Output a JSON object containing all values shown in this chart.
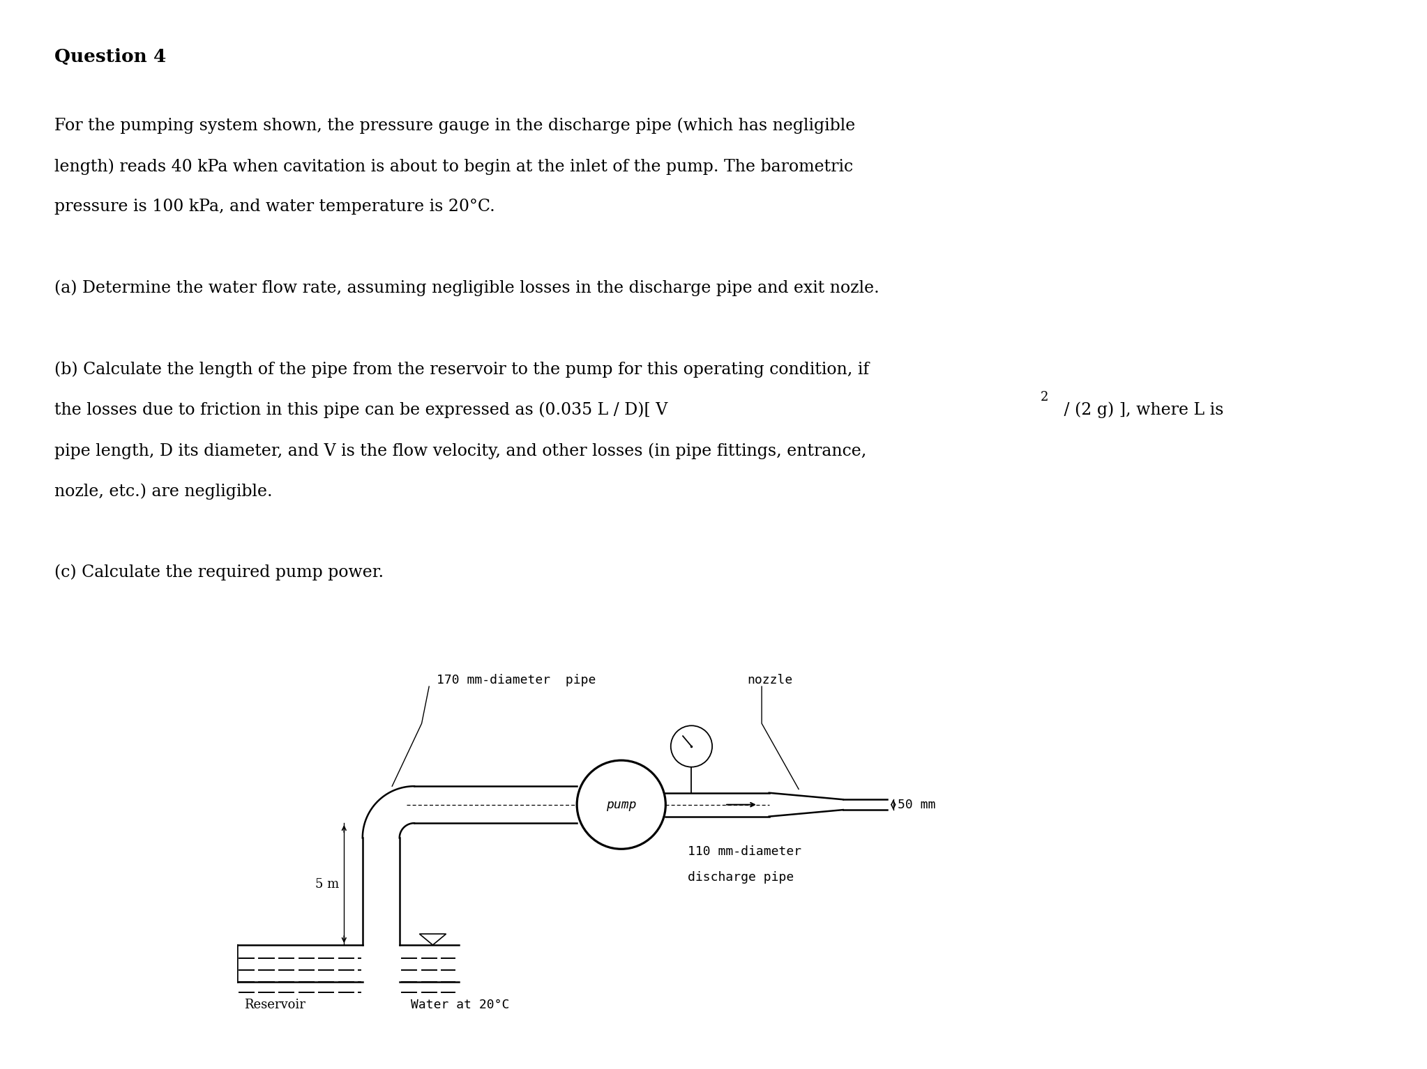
{
  "background_color": "#ffffff",
  "title_text": "Question 4",
  "para1_line1": "For the pumping system shown, the pressure gauge in the discharge pipe (which has negligible",
  "para1_line2": "length) reads 40 kPa when cavitation is about to begin at the inlet of the pump. The barometric",
  "para1_line3": "pressure is 100 kPa, and water temperature is 20°C.",
  "para2a": "(a) Determine the water flow rate, assuming negligible losses in the discharge pipe and exit nozle.",
  "para2b_line1": "(b) Calculate the length of the pipe from the reservoir to the pump for this operating condition, if",
  "para2b_line2_pre": "the losses due to friction in this pipe can be expressed as (0.035 L / D)[ V",
  "para2b_line2_super": "2",
  "para2b_line2_post": " / (2 g) ], where L is",
  "para2b_line3": "pipe length, D its diameter, and V is the flow velocity, and other losses (in pipe fittings, entrance,",
  "para2b_line4": "nozle, etc.) are negligible.",
  "para3": "(c) Calculate the required pump power.",
  "label_170": "170 mm-diameter  pipe",
  "label_pump": "pump",
  "label_nozzle": "nozzle",
  "label_50mm": "50 mm",
  "label_110_line1": "110 mm-diameter",
  "label_110_line2": "discharge pipe",
  "label_5m": "5 m",
  "label_reservoir": "Reservoir",
  "label_water": "Water at 20°C",
  "font_size_title": 19,
  "font_size_body": 17,
  "font_size_diagram": 13,
  "text_color": "#000000"
}
